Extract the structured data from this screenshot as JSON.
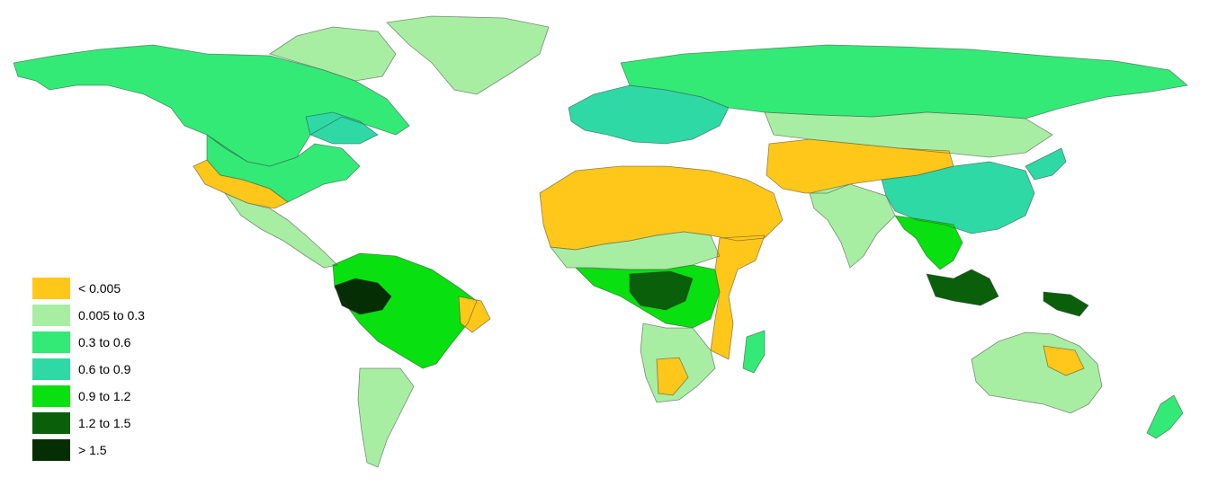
{
  "map": {
    "legend": [
      {
        "label": "< 0.005",
        "color": "#FFC71A"
      },
      {
        "label": "0.005 to 0.3",
        "color": "#A7EEA3"
      },
      {
        "label": "0.3 to 0.6",
        "color": "#33EA77"
      },
      {
        "label": "0.6 to 0.9",
        "color": "#2ED9A6"
      },
      {
        "label": "0.9 to 1.2",
        "color": "#08E00F"
      },
      {
        "label": "1.2 to 1.5",
        "color": "#0A5F0A"
      },
      {
        "label": "> 1.5",
        "color": "#052E05"
      }
    ],
    "regions": [
      {
        "name": "alaska-canada",
        "class": 2
      },
      {
        "name": "canada-east",
        "class": 1
      },
      {
        "name": "greenland",
        "class": 1
      },
      {
        "name": "us-west-arid",
        "class": 0
      },
      {
        "name": "us-east",
        "class": 2
      },
      {
        "name": "great-lakes",
        "class": 3
      },
      {
        "name": "mexico-central-america",
        "class": 1
      },
      {
        "name": "amazon",
        "class": 4
      },
      {
        "name": "amazon-core",
        "class": 6
      },
      {
        "name": "brazil-northeast",
        "class": 0
      },
      {
        "name": "patagonia",
        "class": 1
      },
      {
        "name": "europe",
        "class": 3
      },
      {
        "name": "russia",
        "class": 2
      },
      {
        "name": "siberia-south",
        "class": 1
      },
      {
        "name": "sahara-arabia",
        "class": 0
      },
      {
        "name": "sahel",
        "class": 1
      },
      {
        "name": "congo",
        "class": 4
      },
      {
        "name": "congo-core",
        "class": 5
      },
      {
        "name": "east-africa-arid",
        "class": 0
      },
      {
        "name": "southern-africa",
        "class": 1
      },
      {
        "name": "kalahari",
        "class": 0
      },
      {
        "name": "madagascar",
        "class": 2
      },
      {
        "name": "central-asia",
        "class": 0
      },
      {
        "name": "china",
        "class": 3
      },
      {
        "name": "india",
        "class": 1
      },
      {
        "name": "southeast-asia",
        "class": 4
      },
      {
        "name": "indonesia",
        "class": 5
      },
      {
        "name": "new-guinea",
        "class": 5
      },
      {
        "name": "japan",
        "class": 3
      },
      {
        "name": "australia",
        "class": 1
      },
      {
        "name": "australia-interior",
        "class": 0
      },
      {
        "name": "new-zealand",
        "class": 2
      }
    ]
  }
}
